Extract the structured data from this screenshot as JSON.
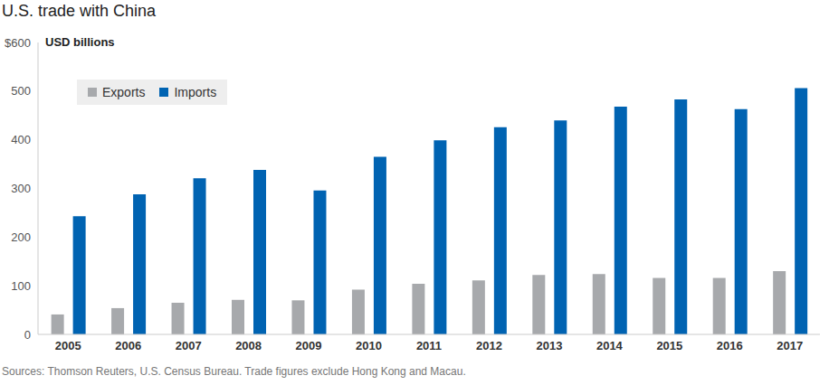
{
  "chart_data": {
    "type": "bar",
    "title": "U.S. trade with China",
    "y_label": "USD billions",
    "footnote": "Sources: Thomson Reuters, U.S. Census Bureau. Trade figures exclude Hong Kong and Macau.",
    "categories": [
      "2005",
      "2006",
      "2007",
      "2008",
      "2009",
      "2010",
      "2011",
      "2012",
      "2013",
      "2014",
      "2015",
      "2016",
      "2017"
    ],
    "series": [
      {
        "name": "Exports",
        "color": "#a7a9ac",
        "values": [
          41,
          54,
          65,
          71,
          70,
          92,
          104,
          111,
          122,
          124,
          116,
          116,
          130
        ]
      },
      {
        "name": "Imports",
        "color": "#0063b2",
        "values": [
          243,
          288,
          321,
          338,
          296,
          365,
          399,
          426,
          440,
          468,
          483,
          463,
          506
        ]
      }
    ],
    "ylim": [
      0,
      600
    ],
    "yticks": [
      0,
      100,
      200,
      300,
      400,
      500,
      {
        "value": 600,
        "label": "$600"
      }
    ],
    "grid": false,
    "legend": "upper left"
  }
}
